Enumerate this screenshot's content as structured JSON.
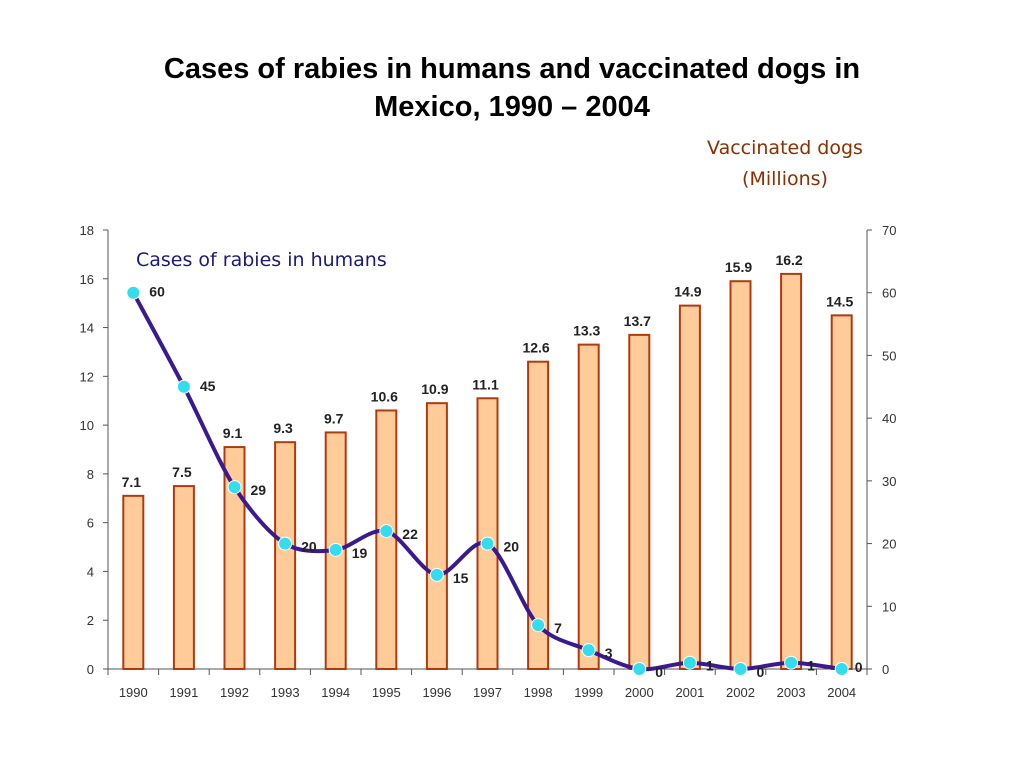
{
  "title_lines": [
    "Cases of rabies in humans and vaccinated dogs in",
    "Mexico, 1990 – 2004"
  ],
  "dogs_label_lines": [
    "Vaccinated dogs",
    "(Millions)"
  ],
  "colors": {
    "bar_fill": "#FFCC99",
    "bar_stroke": "#B03A10",
    "line": "#3B1A8F",
    "marker": "#33DDEE",
    "dogs_label": "#8B2E00",
    "humans_label": "#1A1A7A"
  },
  "chart_data": {
    "type": "bar",
    "categories": [
      "1990",
      "1991",
      "1992",
      "1993",
      "1994",
      "1995",
      "1996",
      "1997",
      "1998",
      "1999",
      "2000",
      "2001",
      "2002",
      "2003",
      "2004"
    ],
    "series": [
      {
        "name": "Vaccinated dogs (Millions)",
        "type": "bar",
        "axis": "left",
        "values": [
          7.1,
          7.5,
          9.1,
          9.3,
          9.7,
          10.6,
          10.9,
          11.1,
          12.6,
          13.3,
          13.7,
          14.9,
          15.9,
          16.2,
          14.5
        ]
      },
      {
        "name": "Cases of rabies in humans",
        "type": "line",
        "axis": "right",
        "values": [
          60,
          45,
          29,
          20,
          19,
          22,
          15,
          20,
          7,
          3,
          0,
          1,
          0,
          1,
          0
        ]
      }
    ],
    "y_left": {
      "min": 0,
      "max": 18,
      "ticks": [
        "0",
        "2",
        "4",
        "6",
        "8",
        "10",
        "12",
        "14",
        "16",
        "18"
      ]
    },
    "y_right": {
      "min": 0,
      "max": 70,
      "ticks": [
        "0",
        "10",
        "20",
        "30",
        "40",
        "50",
        "60",
        "70"
      ]
    },
    "grid": false,
    "legend": "none"
  }
}
